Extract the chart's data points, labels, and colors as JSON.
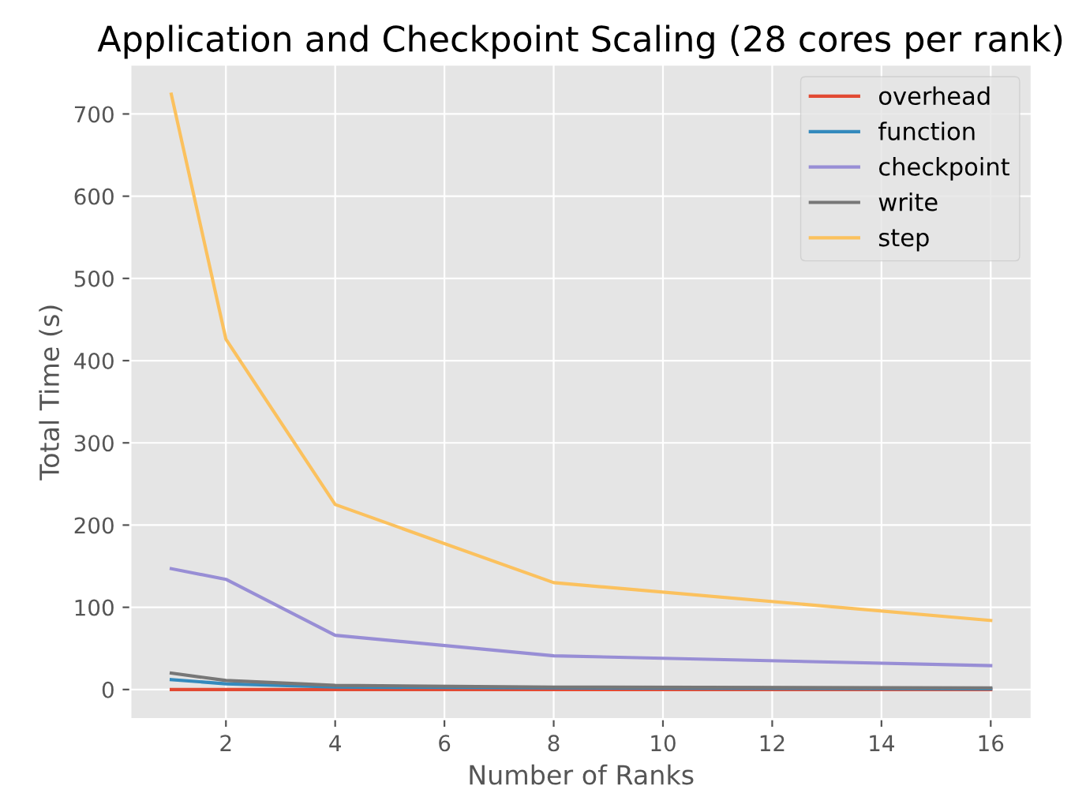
{
  "chart_data": {
    "type": "line",
    "title": "Application and Checkpoint Scaling (28 cores per rank)",
    "xlabel": "Number of Ranks",
    "ylabel": "Total Time (s)",
    "x": [
      1,
      2,
      4,
      8,
      16
    ],
    "series": [
      {
        "name": "overhead",
        "color": "#e24a33",
        "values": [
          0,
          0,
          0,
          0,
          0
        ]
      },
      {
        "name": "function",
        "color": "#348abd",
        "values": [
          12,
          7,
          3,
          2,
          1
        ]
      },
      {
        "name": "checkpoint",
        "color": "#988ed5",
        "values": [
          147,
          134,
          66,
          41,
          29
        ]
      },
      {
        "name": "write",
        "color": "#777777",
        "values": [
          20,
          11,
          5,
          3,
          2
        ]
      },
      {
        "name": "step",
        "color": "#fbc15e",
        "values": [
          724,
          426,
          225,
          130,
          84
        ]
      }
    ],
    "xlim": [
      0.25,
      16.75
    ],
    "ylim": [
      -36,
      760
    ],
    "xticks": [
      2,
      4,
      6,
      8,
      10,
      12,
      14,
      16
    ],
    "yticks": [
      0,
      100,
      200,
      300,
      400,
      500,
      600,
      700
    ],
    "grid": true,
    "legend": "top right",
    "marker": "none",
    "line_style": "solid"
  }
}
